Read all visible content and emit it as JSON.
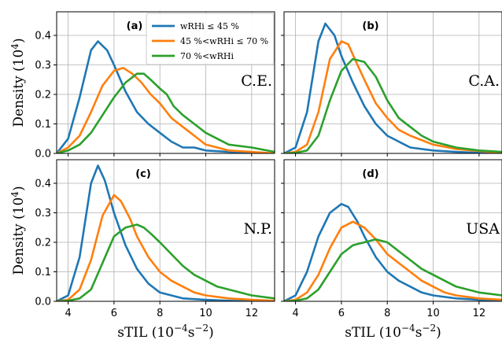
{
  "chart_data": {
    "type": "line",
    "xlabel": "sTIL (10",
    "xlabel_exp1": "−4",
    "xlabel_mid": "s",
    "xlabel_exp2": "−2",
    "xlabel_end": ")",
    "ylabel": "Density (10",
    "ylabel_exp": "4",
    "ylabel_end": ")",
    "xlim": [
      3.5,
      13
    ],
    "ylim": [
      0,
      0.48
    ],
    "xticks": [
      4,
      6,
      8,
      10,
      12
    ],
    "yticks": [
      0.0,
      0.1,
      0.2,
      0.3,
      0.4
    ],
    "ytick_labels": [
      "0.0",
      "0.1",
      "0.2",
      "0.3",
      "0.4"
    ],
    "grid": true,
    "legend": {
      "placement": "top-center of panel (a)",
      "entries": [
        "wRHi ≤ 45 %",
        "45 %<wRHi ≤ 70 %",
        "70 %<wRHi"
      ]
    },
    "colors": [
      "#1f77b4",
      "#ff7f0e",
      "#2ca02c"
    ],
    "panels": [
      {
        "letter": "(a)",
        "region": "C.E.",
        "series": [
          {
            "name": "wRHi ≤ 45 %",
            "x": [
              3.5,
              4,
              4.5,
              5,
              5.3,
              5.7,
              6,
              6.5,
              7,
              7.5,
              8,
              8.5,
              9,
              9.5,
              10,
              11,
              12,
              13
            ],
            "y": [
              0,
              0.05,
              0.19,
              0.35,
              0.38,
              0.35,
              0.3,
              0.21,
              0.14,
              0.1,
              0.07,
              0.04,
              0.02,
              0.02,
              0.01,
              0.005,
              0.002,
              0
            ]
          },
          {
            "name": "45 %<wRHi ≤ 70 %",
            "x": [
              3.5,
              4,
              4.5,
              5,
              5.5,
              6,
              6.4,
              6.8,
              7.2,
              7.6,
              8,
              8.5,
              9,
              9.5,
              10,
              10.5,
              11,
              12,
              13
            ],
            "y": [
              0,
              0.02,
              0.06,
              0.14,
              0.23,
              0.28,
              0.29,
              0.27,
              0.24,
              0.2,
              0.17,
              0.12,
              0.09,
              0.06,
              0.03,
              0.02,
              0.01,
              0.005,
              0
            ]
          },
          {
            "name": "70 %<wRHi",
            "x": [
              3.5,
              4,
              4.5,
              5,
              5.5,
              6,
              6.5,
              7,
              7.3,
              7.6,
              8,
              8.3,
              8.6,
              9,
              9.5,
              10,
              10.5,
              11,
              12,
              13
            ],
            "y": [
              0,
              0.01,
              0.03,
              0.07,
              0.13,
              0.19,
              0.24,
              0.27,
              0.27,
              0.25,
              0.22,
              0.2,
              0.16,
              0.13,
              0.1,
              0.07,
              0.05,
              0.03,
              0.02,
              0.005
            ]
          }
        ]
      },
      {
        "letter": "(b)",
        "region": "C.A.",
        "series": [
          {
            "name": "wRHi ≤ 45 %",
            "x": [
              3.5,
              4,
              4.5,
              5,
              5.3,
              5.7,
              6,
              6.5,
              7,
              7.5,
              8,
              8.5,
              9,
              10,
              11,
              12,
              13
            ],
            "y": [
              0,
              0.02,
              0.14,
              0.38,
              0.44,
              0.4,
              0.33,
              0.24,
              0.16,
              0.1,
              0.06,
              0.04,
              0.02,
              0.01,
              0.005,
              0.002,
              0
            ]
          },
          {
            "name": "45 %<wRHi ≤ 70 %",
            "x": [
              3.5,
              4,
              4.5,
              5,
              5.5,
              6,
              6.3,
              6.7,
              7,
              7.5,
              8,
              8.5,
              9,
              10,
              11,
              12,
              13
            ],
            "y": [
              0,
              0.005,
              0.03,
              0.14,
              0.32,
              0.38,
              0.37,
              0.3,
              0.25,
              0.17,
              0.12,
              0.08,
              0.06,
              0.03,
              0.015,
              0.008,
              0.002
            ]
          },
          {
            "name": "70 %<wRHi",
            "x": [
              3.5,
              4,
              4.5,
              5,
              5.5,
              6,
              6.5,
              7,
              7.5,
              8,
              8.5,
              9,
              9.5,
              10,
              10.5,
              11,
              12,
              13
            ],
            "y": [
              0,
              0.002,
              0.01,
              0.06,
              0.18,
              0.28,
              0.32,
              0.31,
              0.26,
              0.18,
              0.12,
              0.09,
              0.06,
              0.04,
              0.03,
              0.02,
              0.01,
              0.005
            ]
          }
        ]
      },
      {
        "letter": "(c)",
        "region": "N.P.",
        "series": [
          {
            "name": "wRHi ≤ 45 %",
            "x": [
              3.5,
              4,
              4.5,
              5,
              5.3,
              5.6,
              6,
              6.5,
              7,
              7.5,
              8,
              8.5,
              9,
              10,
              11,
              12,
              13
            ],
            "y": [
              0,
              0.02,
              0.15,
              0.4,
              0.46,
              0.41,
              0.3,
              0.19,
              0.11,
              0.06,
              0.03,
              0.02,
              0.01,
              0.005,
              0.002,
              0,
              0
            ]
          },
          {
            "name": "45 %<wRHi ≤ 70 %",
            "x": [
              3.5,
              4,
              4.5,
              5,
              5.5,
              6,
              6.3,
              6.7,
              7,
              7.5,
              8,
              8.5,
              9,
              9.5,
              10,
              11,
              12,
              13
            ],
            "y": [
              0,
              0.005,
              0.04,
              0.14,
              0.29,
              0.36,
              0.34,
              0.28,
              0.22,
              0.15,
              0.1,
              0.07,
              0.05,
              0.03,
              0.02,
              0.01,
              0.005,
              0.002
            ]
          },
          {
            "name": "70 %<wRHi",
            "x": [
              3.5,
              4,
              4.5,
              5,
              5.5,
              6,
              6.5,
              7,
              7.3,
              7.6,
              8,
              8.5,
              9,
              9.5,
              10,
              10.5,
              11,
              12,
              13
            ],
            "y": [
              0,
              0.002,
              0.01,
              0.04,
              0.13,
              0.22,
              0.25,
              0.26,
              0.25,
              0.23,
              0.2,
              0.16,
              0.12,
              0.09,
              0.07,
              0.05,
              0.04,
              0.02,
              0.01
            ]
          }
        ]
      },
      {
        "letter": "(d)",
        "region": "USA",
        "series": [
          {
            "name": "wRHi ≤ 45 %",
            "x": [
              3.5,
              4,
              4.5,
              5,
              5.5,
              6,
              6.3,
              6.7,
              7,
              7.5,
              8,
              8.5,
              9,
              9.5,
              10,
              11,
              12,
              13
            ],
            "y": [
              0,
              0.02,
              0.1,
              0.22,
              0.3,
              0.33,
              0.32,
              0.27,
              0.22,
              0.15,
              0.1,
              0.07,
              0.05,
              0.03,
              0.02,
              0.01,
              0.005,
              0
            ]
          },
          {
            "name": "45 %<wRHi ≤ 70 %",
            "x": [
              3.5,
              4,
              4.5,
              5,
              5.5,
              6,
              6.5,
              7,
              7.5,
              8,
              8.5,
              9,
              9.5,
              10,
              10.5,
              11,
              12,
              13
            ],
            "y": [
              0,
              0.005,
              0.03,
              0.09,
              0.18,
              0.25,
              0.27,
              0.25,
              0.21,
              0.16,
              0.13,
              0.1,
              0.07,
              0.05,
              0.03,
              0.02,
              0.01,
              0.005
            ]
          },
          {
            "name": "70 %<wRHi",
            "x": [
              3.5,
              4,
              4.5,
              5,
              5.5,
              6,
              6.5,
              7,
              7.5,
              8,
              8.5,
              9,
              9.5,
              10,
              10.5,
              11,
              12,
              13
            ],
            "y": [
              0,
              0.002,
              0.01,
              0.04,
              0.1,
              0.16,
              0.19,
              0.2,
              0.21,
              0.2,
              0.17,
              0.14,
              0.11,
              0.09,
              0.07,
              0.05,
              0.03,
              0.02
            ]
          }
        ]
      }
    ]
  }
}
